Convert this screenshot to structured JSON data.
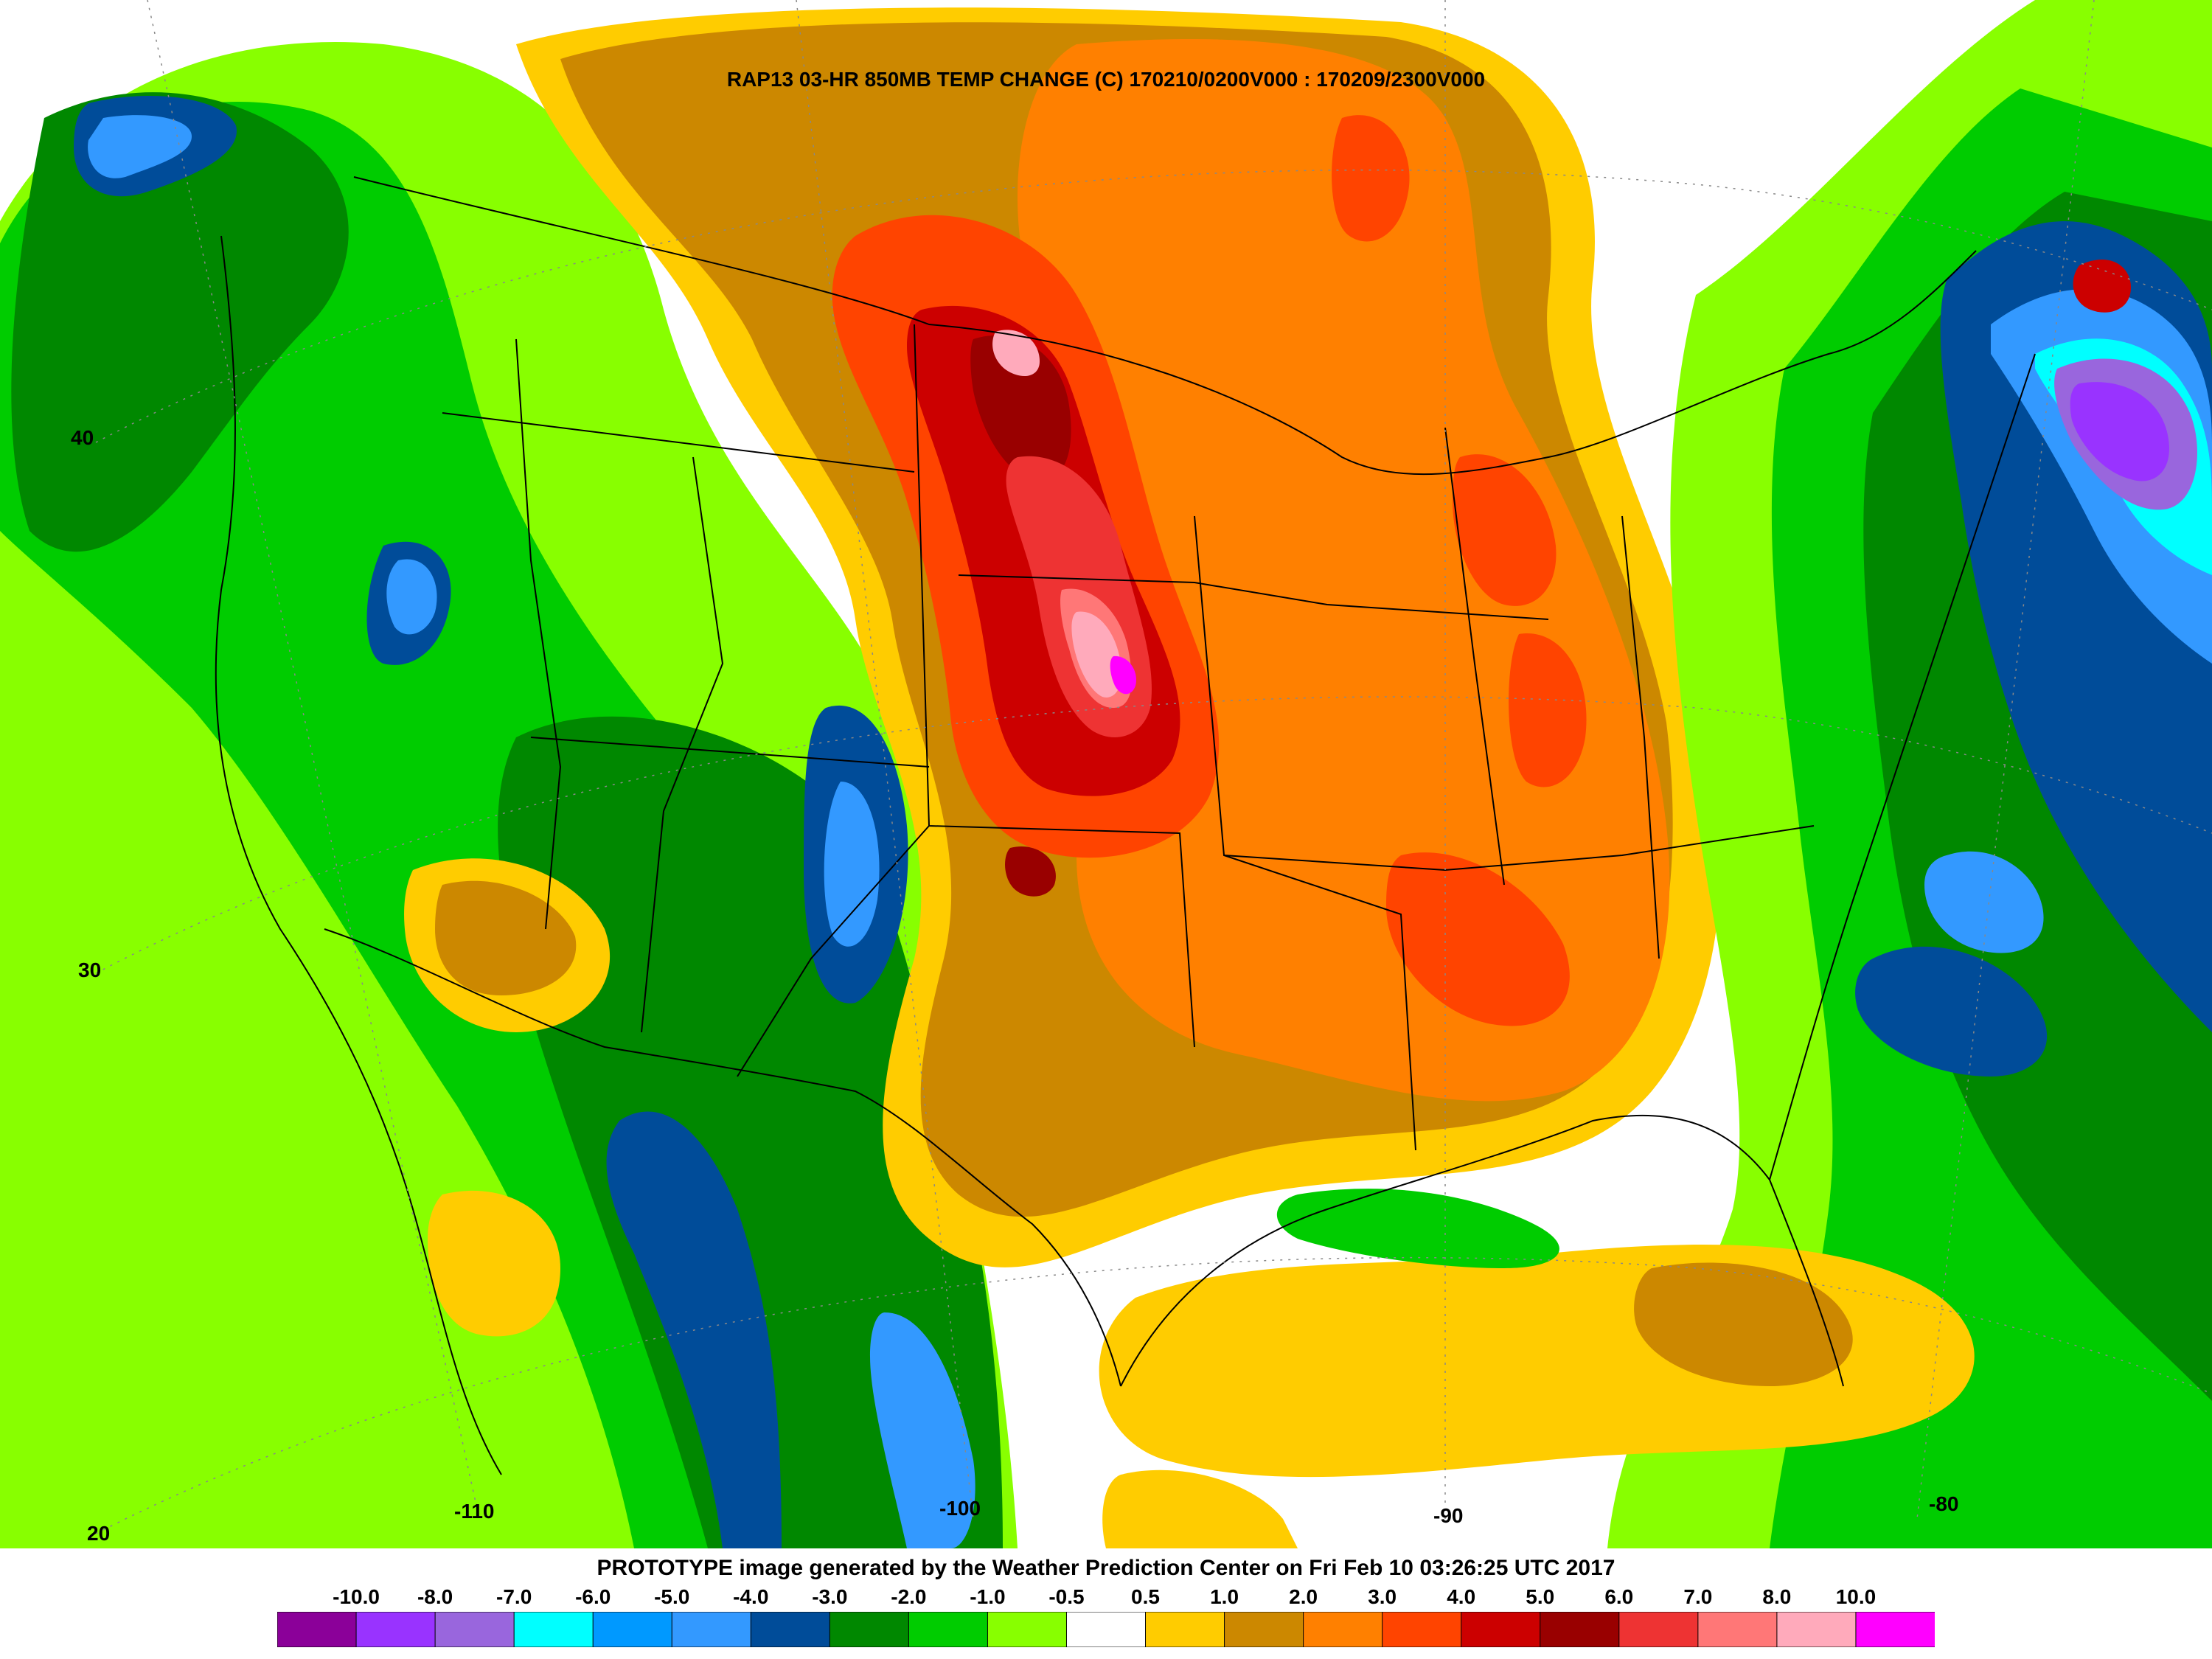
{
  "title": "RAP13 03-HR 850MB TEMP CHANGE (C) 170210/0200V000 : 170209/2300V000",
  "footer": "PROTOTYPE image generated by the Weather Prediction Center on Fri Feb 10 03:26:25 UTC 2017",
  "lat_labels": [
    "40",
    "30",
    "20"
  ],
  "lon_labels": [
    "-110",
    "-100",
    "-90",
    "-80"
  ],
  "colorbar": {
    "labels": [
      "-10.0",
      "-8.0",
      "-7.0",
      "-6.0",
      "-5.0",
      "-4.0",
      "-3.0",
      "-2.0",
      "-1.0",
      "-0.5",
      "0.5",
      "1.0",
      "2.0",
      "3.0",
      "4.0",
      "5.0",
      "6.0",
      "7.0",
      "8.0",
      "10.0"
    ],
    "colors": [
      "#8b0099",
      "#9933ff",
      "#9966dd",
      "#00ffff",
      "#0099ff",
      "#3399ff",
      "#004c99",
      "#008800",
      "#00cc00",
      "#88ff00",
      "#ffffff",
      "#ffcc00",
      "#cc8800",
      "#ff8000",
      "#ff4400",
      "#cc0000",
      "#990000",
      "#ee3333",
      "#ff7777",
      "#ffaabb",
      "#ff00ff"
    ]
  },
  "field_colors": {
    "neg10": "#8b0099",
    "neg8": "#9933ff",
    "neg7": "#9966dd",
    "neg6": "#00ffff",
    "neg5": "#0099ff",
    "neg4": "#3399ff",
    "neg3": "#004c99",
    "neg2": "#008800",
    "neg1": "#00cc00",
    "neg05": "#88ff00",
    "zero": "#ffffff",
    "pos1": "#ffcc00",
    "pos2": "#cc8800",
    "pos3": "#ff8000",
    "pos4": "#ff4400",
    "pos5": "#cc0000",
    "pos6": "#990000",
    "pos7": "#ee3333",
    "pos8": "#ff7777",
    "pos10": "#ffaabb",
    "pos11": "#ff00ff"
  }
}
